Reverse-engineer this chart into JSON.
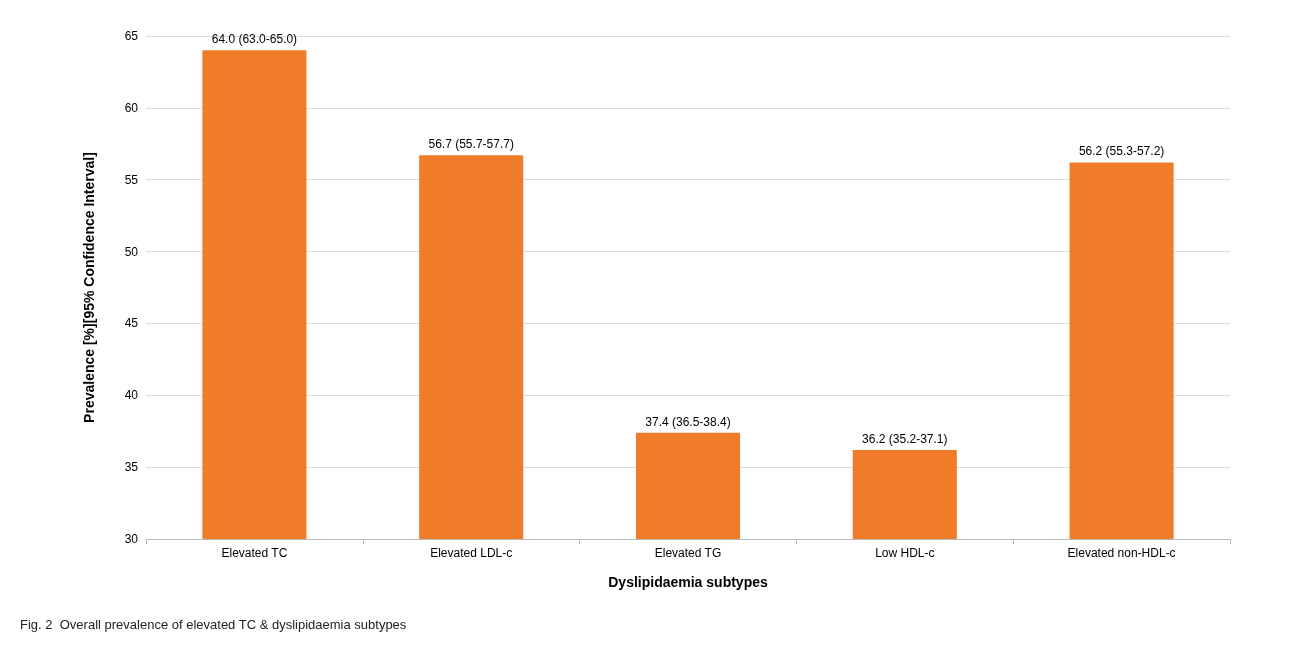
{
  "chart_data": {
    "type": "bar",
    "xlabel": "Dyslipidaemia subtypes",
    "ylabel": "Prevalence [%][95% Confidence Interval]",
    "categories": [
      "Elevated TC",
      "Elevated LDL-c",
      "Elevated TG",
      "Low HDL-c",
      "Elevated non-HDL-c"
    ],
    "values": [
      64.0,
      56.7,
      37.4,
      36.2,
      56.2
    ],
    "value_labels": [
      "64.0 (63.0-65.0)",
      "56.7 (55.7-57.7)",
      "37.4 (36.5-38.4)",
      "36.2 (35.2-37.1)",
      "56.2 (55.3-57.2)"
    ],
    "color": "#f07c2a",
    "ylim": [
      30,
      65
    ],
    "yticks": [
      30,
      35,
      40,
      45,
      50,
      55,
      60,
      65
    ],
    "grid": "y",
    "annotations": [
      "Fig. 2  Overall prevalence of elevated TC & dyslipidaemia subtypes"
    ]
  }
}
